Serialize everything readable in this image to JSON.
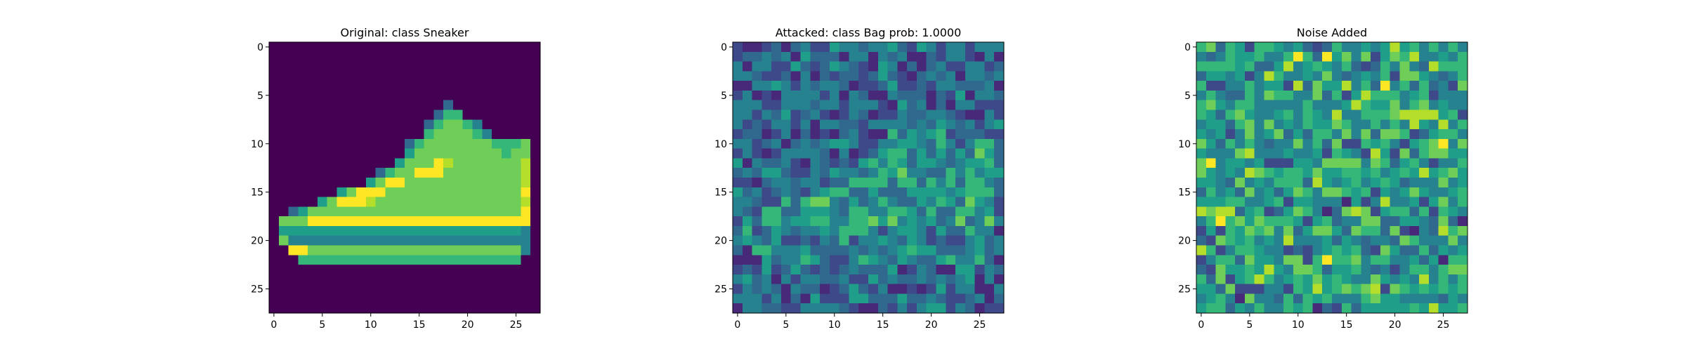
{
  "chart_data": [
    {
      "type": "heatmap",
      "title": "Original: class Sneaker",
      "xlabel": "",
      "ylabel": "",
      "grid_size": [
        28,
        28
      ],
      "x_range": [
        -0.5,
        27.5
      ],
      "y_range": [
        -0.5,
        27.5
      ],
      "y_inverted": true,
      "xticks": [
        0,
        5,
        10,
        15,
        20,
        25
      ],
      "yticks": [
        0,
        5,
        10,
        15,
        20,
        25
      ],
      "colormap": "viridis",
      "grid": false,
      "values": [
        "0000000000000000000000000000",
        "0000000000000000000000000000",
        "0000000000000000000000000000",
        "0000000000000000000000000000",
        "0000000000000000000000000000",
        "0000000000000000000000000000",
        "0000000000000000003000000000",
        "0000000000000000036600000000",
        "0000000000000000367764000000",
        "0000000000000000677776400000",
        "0000000000000036777777766670",
        "0000000000000057777777776770",
        "0000000000000577798777777780",
        "0000000000036779997777777780",
        "0000000000579977777777777780",
        "0000000579997777777777777790",
        "0000057999877777777777777780",
        "0035777777777777777777777790",
        "0777999999999999999999999990",
        "0555555555555555555555555540",
        "0744444444444444444444444440",
        "0099777777777777777777777740",
        "0006666666666666666666666600",
        "0000000000000000000000000000",
        "0000000000000000000000000000",
        "0000000000000000000000000000",
        "0000000000000000000000000000",
        "0000000000000000000000000000"
      ]
    },
    {
      "type": "heatmap",
      "title": "Attacked: class Bag prob: 1.0000",
      "xlabel": "",
      "ylabel": "",
      "grid_size": [
        28,
        28
      ],
      "x_range": [
        -0.5,
        27.5
      ],
      "y_range": [
        -0.5,
        27.5
      ],
      "y_inverted": true,
      "xticks": [
        0,
        5,
        10,
        15,
        20,
        25
      ],
      "yticks": [
        0,
        5,
        10,
        15,
        20,
        25
      ],
      "colormap": "viridis",
      "grid": false
    },
    {
      "type": "heatmap",
      "title": "Noise Added",
      "xlabel": "",
      "ylabel": "",
      "grid_size": [
        28,
        28
      ],
      "x_range": [
        -0.5,
        27.5
      ],
      "y_range": [
        -0.5,
        27.5
      ],
      "y_inverted": true,
      "xticks": [
        0,
        5,
        10,
        15,
        20,
        25
      ],
      "yticks": [
        0,
        5,
        10,
        15,
        20,
        25
      ],
      "colormap": "viridis",
      "grid": false
    }
  ],
  "colors": {
    "viridis": [
      "#440154",
      "#482878",
      "#3e4989",
      "#31688e",
      "#26828e",
      "#1f9e89",
      "#35b779",
      "#6ece58",
      "#b5de2b",
      "#fde725"
    ],
    "axis": "#000000",
    "background": "#ffffff"
  }
}
